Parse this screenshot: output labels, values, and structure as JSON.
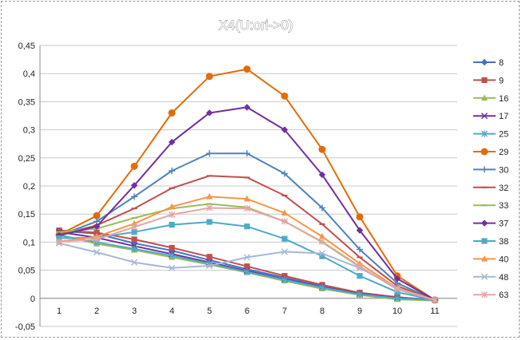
{
  "chart_data": {
    "type": "line",
    "title": "X4(U:ori->0)",
    "x": [
      1,
      2,
      3,
      4,
      5,
      6,
      7,
      8,
      9,
      10,
      11
    ],
    "ylim": [
      -0.05,
      0.45
    ],
    "yticks": [
      -0.05,
      0,
      0.05,
      0.1,
      0.15,
      0.2,
      0.25,
      0.3,
      0.35,
      0.4,
      0.45
    ],
    "ytick_labels": [
      "-0,05",
      "0",
      "0,05",
      "0,1",
      "0,15",
      "0,2",
      "0,25",
      "0,3",
      "0,35",
      "0,4",
      "0,45"
    ],
    "xtick_labels": [
      "1",
      "2",
      "3",
      "4",
      "5",
      "6",
      "7",
      "8",
      "9",
      "10",
      "11"
    ],
    "grid": "horizontal",
    "legend_position": "right",
    "series": [
      {
        "name": "8",
        "color": "#4472c4",
        "marker": "diamond",
        "values": [
          0.12,
          0.115,
          0.098,
          0.085,
          0.068,
          0.052,
          0.037,
          0.022,
          0.01,
          0.002,
          -0.003
        ]
      },
      {
        "name": "9",
        "color": "#c0504d",
        "marker": "square",
        "values": [
          0.121,
          0.117,
          0.105,
          0.09,
          0.074,
          0.057,
          0.04,
          0.024,
          0.01,
          0.002,
          -0.003
        ]
      },
      {
        "name": "16",
        "color": "#9bbb59",
        "marker": "triangle",
        "values": [
          0.113,
          0.097,
          0.086,
          0.073,
          0.06,
          0.046,
          0.031,
          0.017,
          0.006,
          -0.002,
          -0.004
        ]
      },
      {
        "name": "17",
        "color": "#7030a0",
        "marker": "x",
        "values": [
          0.118,
          0.108,
          0.093,
          0.079,
          0.064,
          0.049,
          0.034,
          0.02,
          0.008,
          0.001,
          -0.003
        ]
      },
      {
        "name": "25",
        "color": "#4bacc6",
        "marker": "star",
        "values": [
          0.112,
          0.1,
          0.088,
          0.076,
          0.062,
          0.047,
          0.033,
          0.019,
          0.007,
          0.0,
          -0.003
        ]
      },
      {
        "name": "29",
        "color": "#e36c0a",
        "marker": "circle",
        "values": [
          0.113,
          0.147,
          0.235,
          0.33,
          0.395,
          0.408,
          0.36,
          0.265,
          0.145,
          0.04,
          -0.003
        ]
      },
      {
        "name": "30",
        "color": "#4f81bd",
        "marker": "plus",
        "values": [
          0.112,
          0.137,
          0.181,
          0.227,
          0.258,
          0.258,
          0.222,
          0.161,
          0.087,
          0.027,
          -0.003
        ]
      },
      {
        "name": "32",
        "color": "#c0504d",
        "marker": "dash",
        "values": [
          0.113,
          0.13,
          0.16,
          0.196,
          0.218,
          0.215,
          0.183,
          0.132,
          0.073,
          0.022,
          -0.003
        ]
      },
      {
        "name": "33",
        "color": "#9bbb59",
        "marker": "dash",
        "values": [
          0.118,
          0.124,
          0.143,
          0.16,
          0.168,
          0.162,
          0.137,
          0.1,
          0.056,
          0.016,
          -0.004
        ]
      },
      {
        "name": "37",
        "color": "#7030a0",
        "marker": "diamond",
        "values": [
          0.112,
          0.128,
          0.201,
          0.278,
          0.33,
          0.34,
          0.3,
          0.22,
          0.121,
          0.035,
          -0.003
        ]
      },
      {
        "name": "38",
        "color": "#4bacc6",
        "marker": "square",
        "values": [
          0.107,
          0.108,
          0.118,
          0.131,
          0.136,
          0.128,
          0.106,
          0.075,
          0.04,
          0.011,
          -0.003
        ]
      },
      {
        "name": "40",
        "color": "#f79646",
        "marker": "triangle",
        "values": [
          0.101,
          0.11,
          0.133,
          0.163,
          0.181,
          0.177,
          0.152,
          0.11,
          0.062,
          0.018,
          -0.003
        ]
      },
      {
        "name": "48",
        "color": "#a5b7d8",
        "marker": "x",
        "values": [
          0.098,
          0.082,
          0.064,
          0.054,
          0.058,
          0.073,
          0.083,
          0.08,
          0.054,
          0.018,
          -0.003
        ]
      },
      {
        "name": "63",
        "color": "#e6a5a5",
        "marker": "star",
        "values": [
          0.101,
          0.105,
          0.127,
          0.149,
          0.161,
          0.16,
          0.137,
          0.101,
          0.057,
          0.016,
          -0.003
        ]
      }
    ]
  }
}
